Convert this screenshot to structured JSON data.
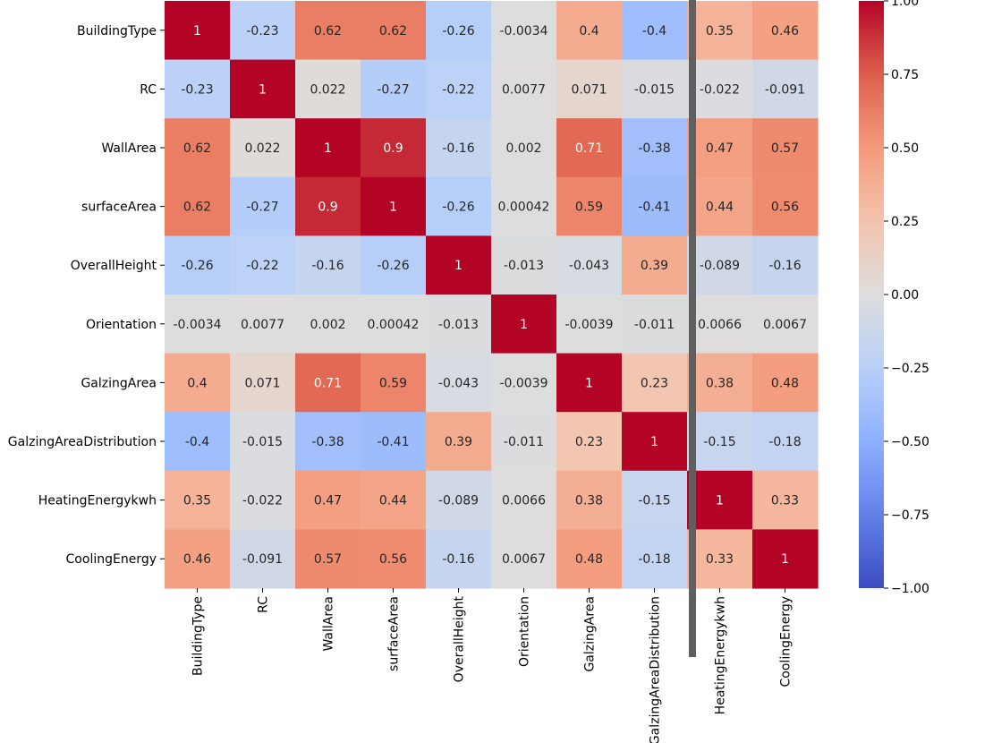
{
  "chart_data": {
    "type": "heatmap",
    "rows": [
      "BuildingType",
      "RC",
      "WallArea",
      "surfaceArea",
      "OverallHeight",
      "Orientation",
      "GalzingArea",
      "GalzingAreaDistribution",
      "HeatingEnergykwh",
      "CoolingEnergy"
    ],
    "columns": [
      "BuildingType",
      "RC",
      "WallArea",
      "surfaceArea",
      "OverallHeight",
      "Orientation",
      "GalzingArea",
      "GalzingAreaDistribution",
      "HeatingEnergykwh",
      "CoolingEnergy"
    ],
    "values": [
      [
        1,
        -0.23,
        0.62,
        0.62,
        -0.26,
        -0.0034,
        0.4,
        -0.4,
        0.35,
        0.46
      ],
      [
        -0.23,
        1,
        0.022,
        -0.27,
        -0.22,
        0.0077,
        0.071,
        -0.015,
        -0.022,
        -0.091
      ],
      [
        0.62,
        0.022,
        1,
        0.9,
        -0.16,
        0.002,
        0.71,
        -0.38,
        0.47,
        0.57
      ],
      [
        0.62,
        -0.27,
        0.9,
        1,
        -0.26,
        0.00042,
        0.59,
        -0.41,
        0.44,
        0.56
      ],
      [
        -0.26,
        -0.22,
        -0.16,
        -0.26,
        1,
        -0.013,
        -0.043,
        0.39,
        -0.089,
        -0.16
      ],
      [
        -0.0034,
        0.0077,
        0.002,
        0.00042,
        -0.013,
        1,
        -0.0039,
        -0.011,
        0.0066,
        0.0067
      ],
      [
        0.4,
        0.071,
        0.71,
        0.59,
        -0.043,
        -0.0039,
        1,
        0.23,
        0.38,
        0.48
      ],
      [
        -0.4,
        -0.015,
        -0.38,
        -0.41,
        0.39,
        -0.011,
        0.23,
        1,
        -0.15,
        -0.18
      ],
      [
        0.35,
        -0.022,
        0.47,
        0.44,
        -0.089,
        0.0066,
        0.38,
        -0.15,
        1,
        0.33
      ],
      [
        0.46,
        -0.091,
        0.57,
        0.56,
        -0.16,
        0.0067,
        0.48,
        -0.18,
        0.33,
        1
      ]
    ],
    "value_labels": [
      [
        "1",
        "-0.23",
        "0.62",
        "0.62",
        "-0.26",
        "-0.0034",
        "0.4",
        "-0.4",
        "0.35",
        "0.46"
      ],
      [
        "-0.23",
        "1",
        "0.022",
        "-0.27",
        "-0.22",
        "0.0077",
        "0.071",
        "-0.015",
        "-0.022",
        "-0.091"
      ],
      [
        "0.62",
        "0.022",
        "1",
        "0.9",
        "-0.16",
        "0.002",
        "0.71",
        "-0.38",
        "0.47",
        "0.57"
      ],
      [
        "0.62",
        "-0.27",
        "0.9",
        "1",
        "-0.26",
        "0.00042",
        "0.59",
        "-0.41",
        "0.44",
        "0.56"
      ],
      [
        "-0.26",
        "-0.22",
        "-0.16",
        "-0.26",
        "1",
        "-0.013",
        "-0.043",
        "0.39",
        "-0.089",
        "-0.16"
      ],
      [
        "-0.0034",
        "0.0077",
        "0.002",
        "0.00042",
        "-0.013",
        "1",
        "-0.0039",
        "-0.011",
        "0.0066",
        "0.0067"
      ],
      [
        "0.4",
        "0.071",
        "0.71",
        "0.59",
        "-0.043",
        "-0.0039",
        "1",
        "0.23",
        "0.38",
        "0.48"
      ],
      [
        "-0.4",
        "-0.015",
        "-0.38",
        "-0.41",
        "0.39",
        "-0.011",
        "0.23",
        "1",
        "-0.15",
        "-0.18"
      ],
      [
        "0.35",
        "-0.022",
        "0.47",
        "0.44",
        "-0.089",
        "0.0066",
        "0.38",
        "-0.15",
        "1",
        "0.33"
      ],
      [
        "0.46",
        "-0.091",
        "0.57",
        "0.56",
        "-0.16",
        "0.0067",
        "0.48",
        "-0.18",
        "0.33",
        "1"
      ]
    ],
    "colormap": "coolwarm",
    "vmin": -1,
    "vmax": 1,
    "colorbar": {
      "ticks": [
        1,
        0.75,
        0.5,
        0.25,
        0,
        -0.25,
        -0.5,
        -0.75,
        -1
      ],
      "tick_labels": [
        "1.00",
        "0.75",
        "0.50",
        "0.25",
        "0.00",
        "−0.25",
        "−0.50",
        "−0.75",
        "−1.00"
      ],
      "placement": "right"
    },
    "title": "",
    "xlabel": "",
    "ylabel": ""
  },
  "overlay": {
    "vertical_bar_color": "#5f5f5f"
  }
}
